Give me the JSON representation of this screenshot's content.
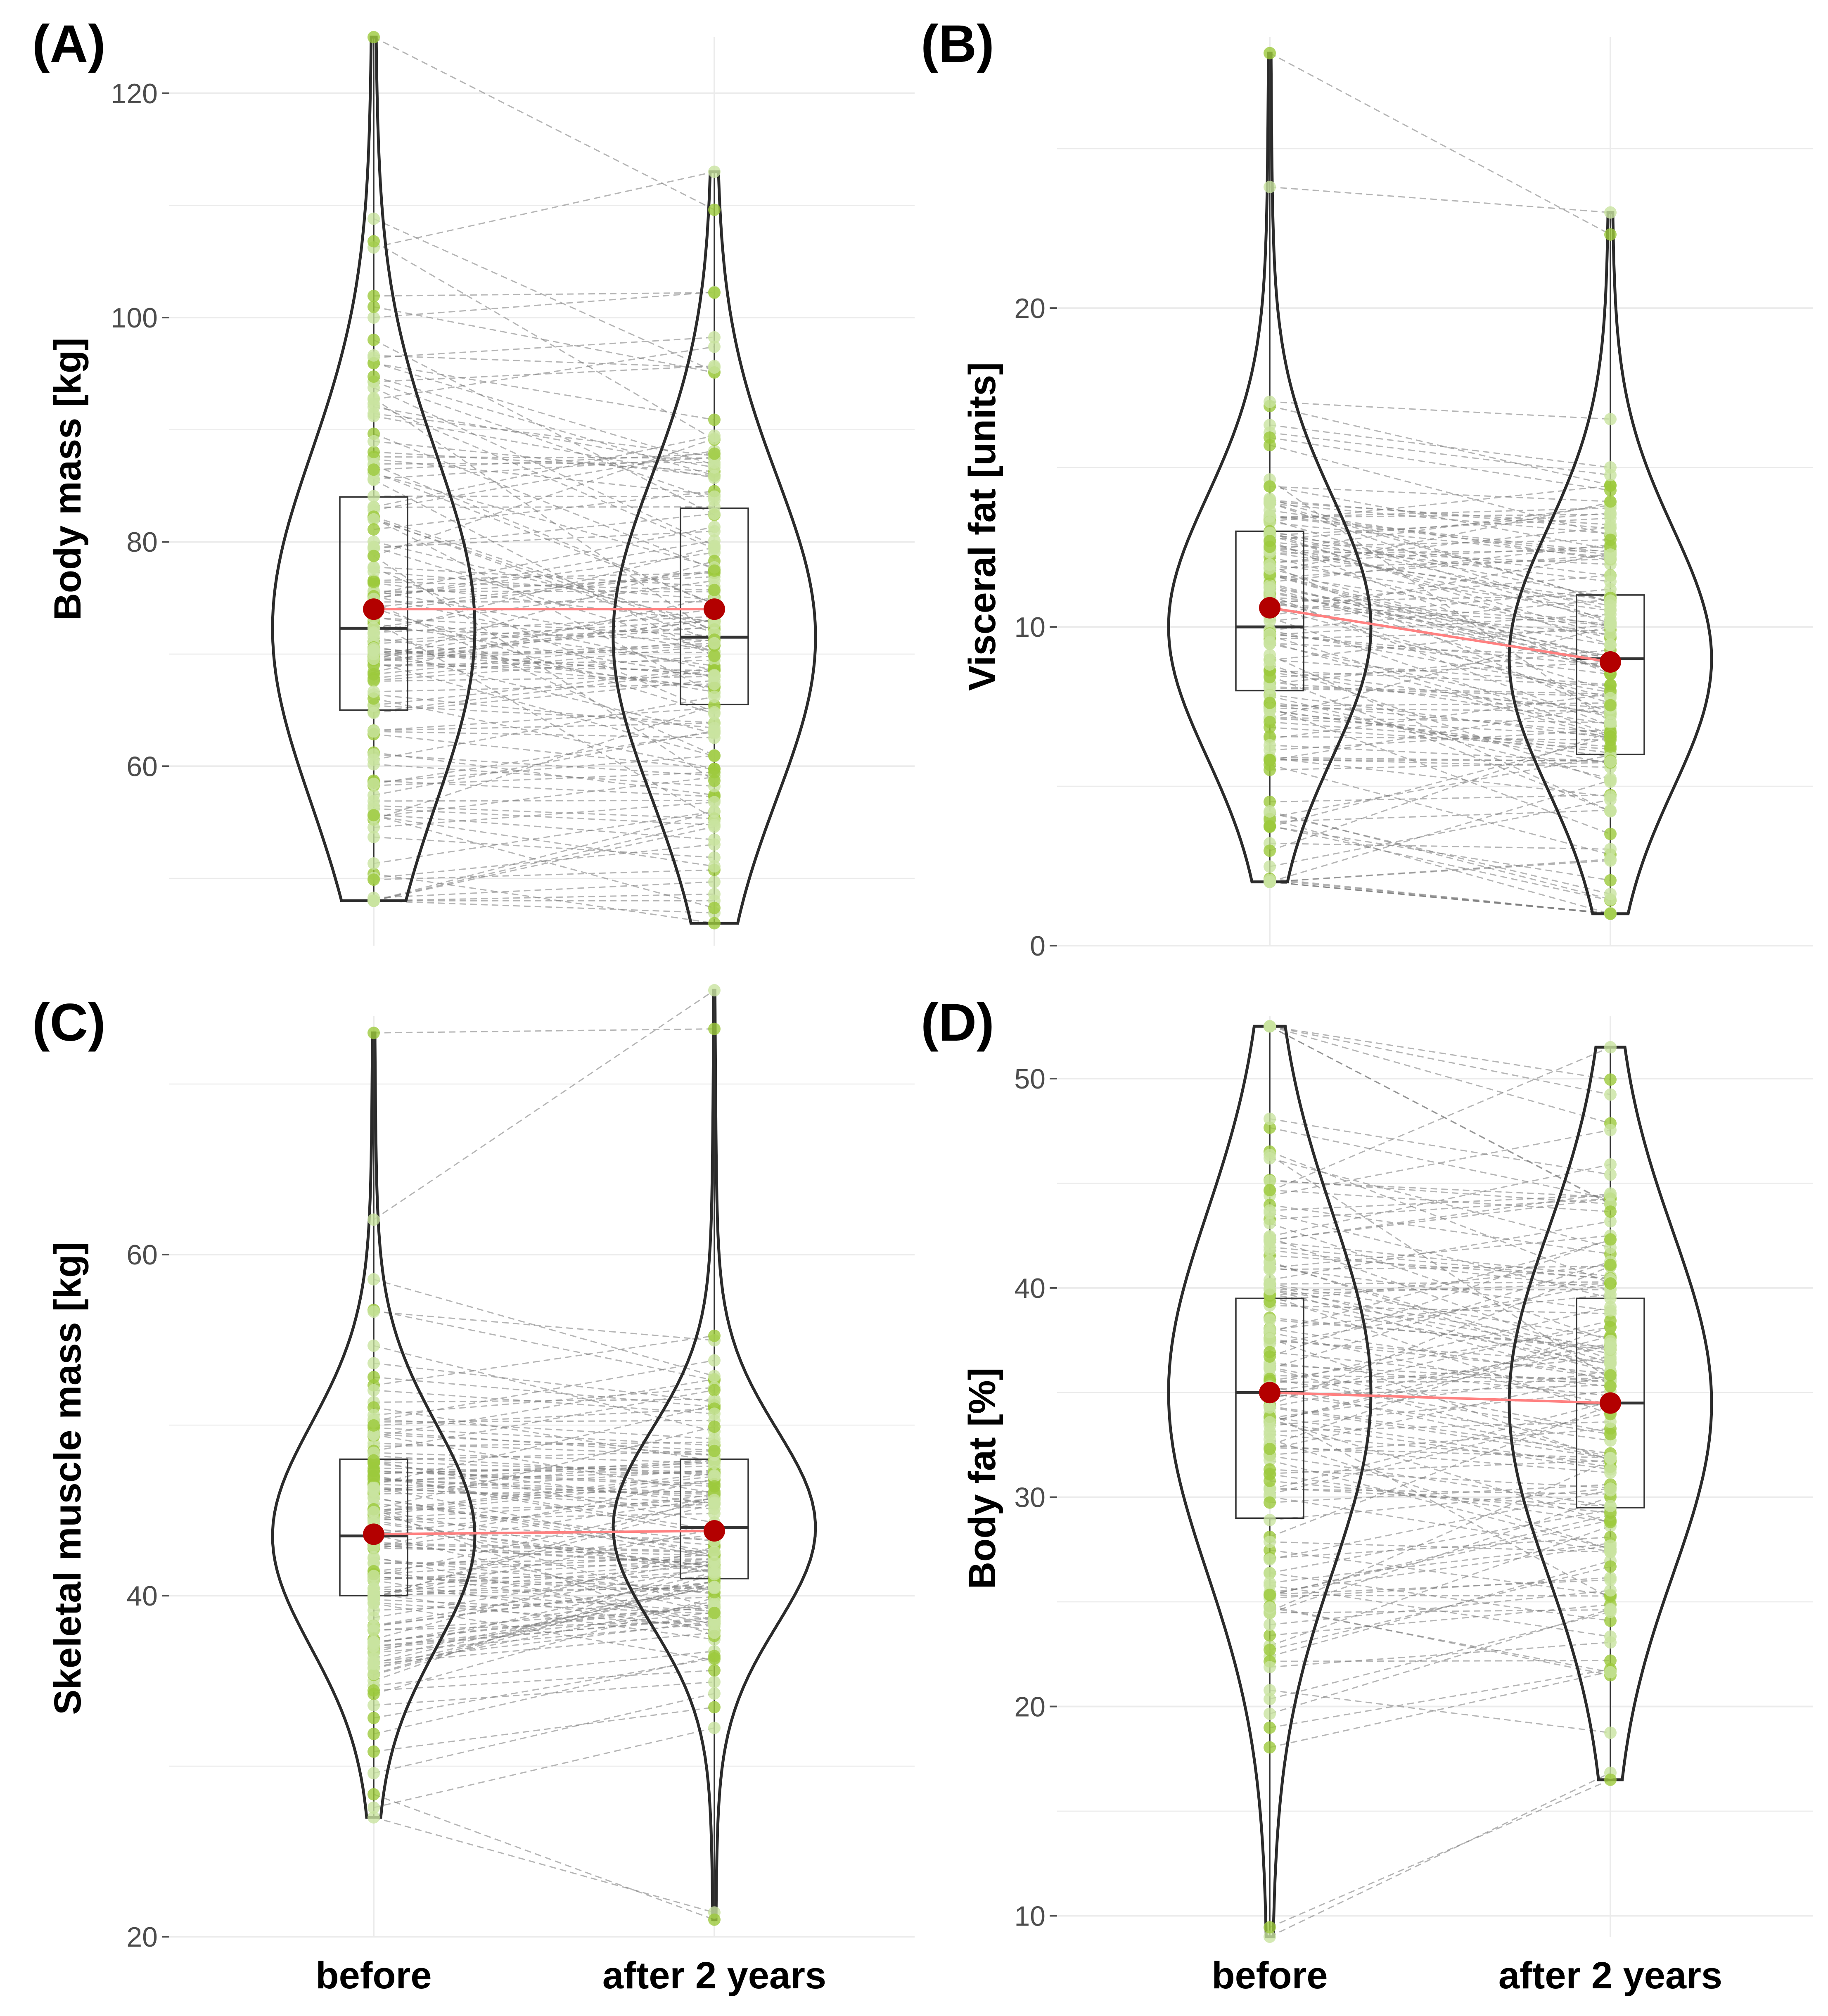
{
  "figure": {
    "x_categories": [
      "before",
      "after 2 years"
    ],
    "colors": {
      "violin_stroke": "#2b2b2b",
      "box_stroke": "#333333",
      "point_fill": "#9cc93c",
      "point_light": "#c9e3a0",
      "mean_marker": "#b30000",
      "mean_line": "#ff8080",
      "paired_line": "#7a7a7a",
      "grid": "#ebebeb"
    }
  },
  "chart_data": [
    {
      "panel": "(A)",
      "type": "violin",
      "ylabel": "Body mass [kg]",
      "categories": [
        "before",
        "after 2 years"
      ],
      "yticks": [
        60,
        80,
        100,
        120
      ],
      "ylim": [
        44,
        125
      ],
      "series": [
        {
          "category": "before",
          "min": 48.0,
          "q1": 65.0,
          "median": 72.3,
          "q3": 84.0,
          "max": 125.0,
          "mean": 74.0
        },
        {
          "category": "after 2 years",
          "min": 46.0,
          "q1": 65.5,
          "median": 71.5,
          "q3": 83.0,
          "max": 113.0,
          "mean": 74.0
        }
      ]
    },
    {
      "panel": "(B)",
      "type": "violin",
      "ylabel": "Visceral fat [units]",
      "categories": [
        "before",
        "after 2 years"
      ],
      "yticks": [
        0,
        10,
        20
      ],
      "ylim": [
        0,
        28.5
      ],
      "series": [
        {
          "category": "before",
          "min": 2.0,
          "q1": 8.0,
          "median": 10.0,
          "q3": 13.0,
          "max": 28.0,
          "mean": 10.6
        },
        {
          "category": "after 2 years",
          "min": 1.0,
          "q1": 6.0,
          "median": 9.0,
          "q3": 11.0,
          "max": 23.0,
          "mean": 8.9
        }
      ]
    },
    {
      "panel": "(C)",
      "type": "violin",
      "ylabel": "Skeletal muscle mass [kg]",
      "categories": [
        "before",
        "after 2 years"
      ],
      "yticks": [
        20,
        40,
        60
      ],
      "ylim": [
        20,
        74
      ],
      "series": [
        {
          "category": "before",
          "min": 27.0,
          "q1": 40.0,
          "median": 43.5,
          "q3": 48.0,
          "max": 73.0,
          "mean": 43.6
        },
        {
          "category": "after 2 years",
          "min": 21.0,
          "q1": 41.0,
          "median": 44.0,
          "q3": 48.0,
          "max": 75.5,
          "mean": 43.8
        }
      ]
    },
    {
      "panel": "(D)",
      "type": "violin",
      "ylabel": "Body fat [%]",
      "categories": [
        "before",
        "after 2 years"
      ],
      "yticks": [
        10,
        20,
        30,
        40,
        50
      ],
      "ylim": [
        9,
        53
      ],
      "series": [
        {
          "category": "before",
          "min": 9.0,
          "q1": 29.0,
          "median": 35.0,
          "q3": 39.5,
          "max": 52.5,
          "mean": 35.0
        },
        {
          "category": "after 2 years",
          "min": 16.5,
          "q1": 29.5,
          "median": 34.5,
          "q3": 39.5,
          "max": 51.5,
          "mean": 34.5
        }
      ]
    }
  ]
}
